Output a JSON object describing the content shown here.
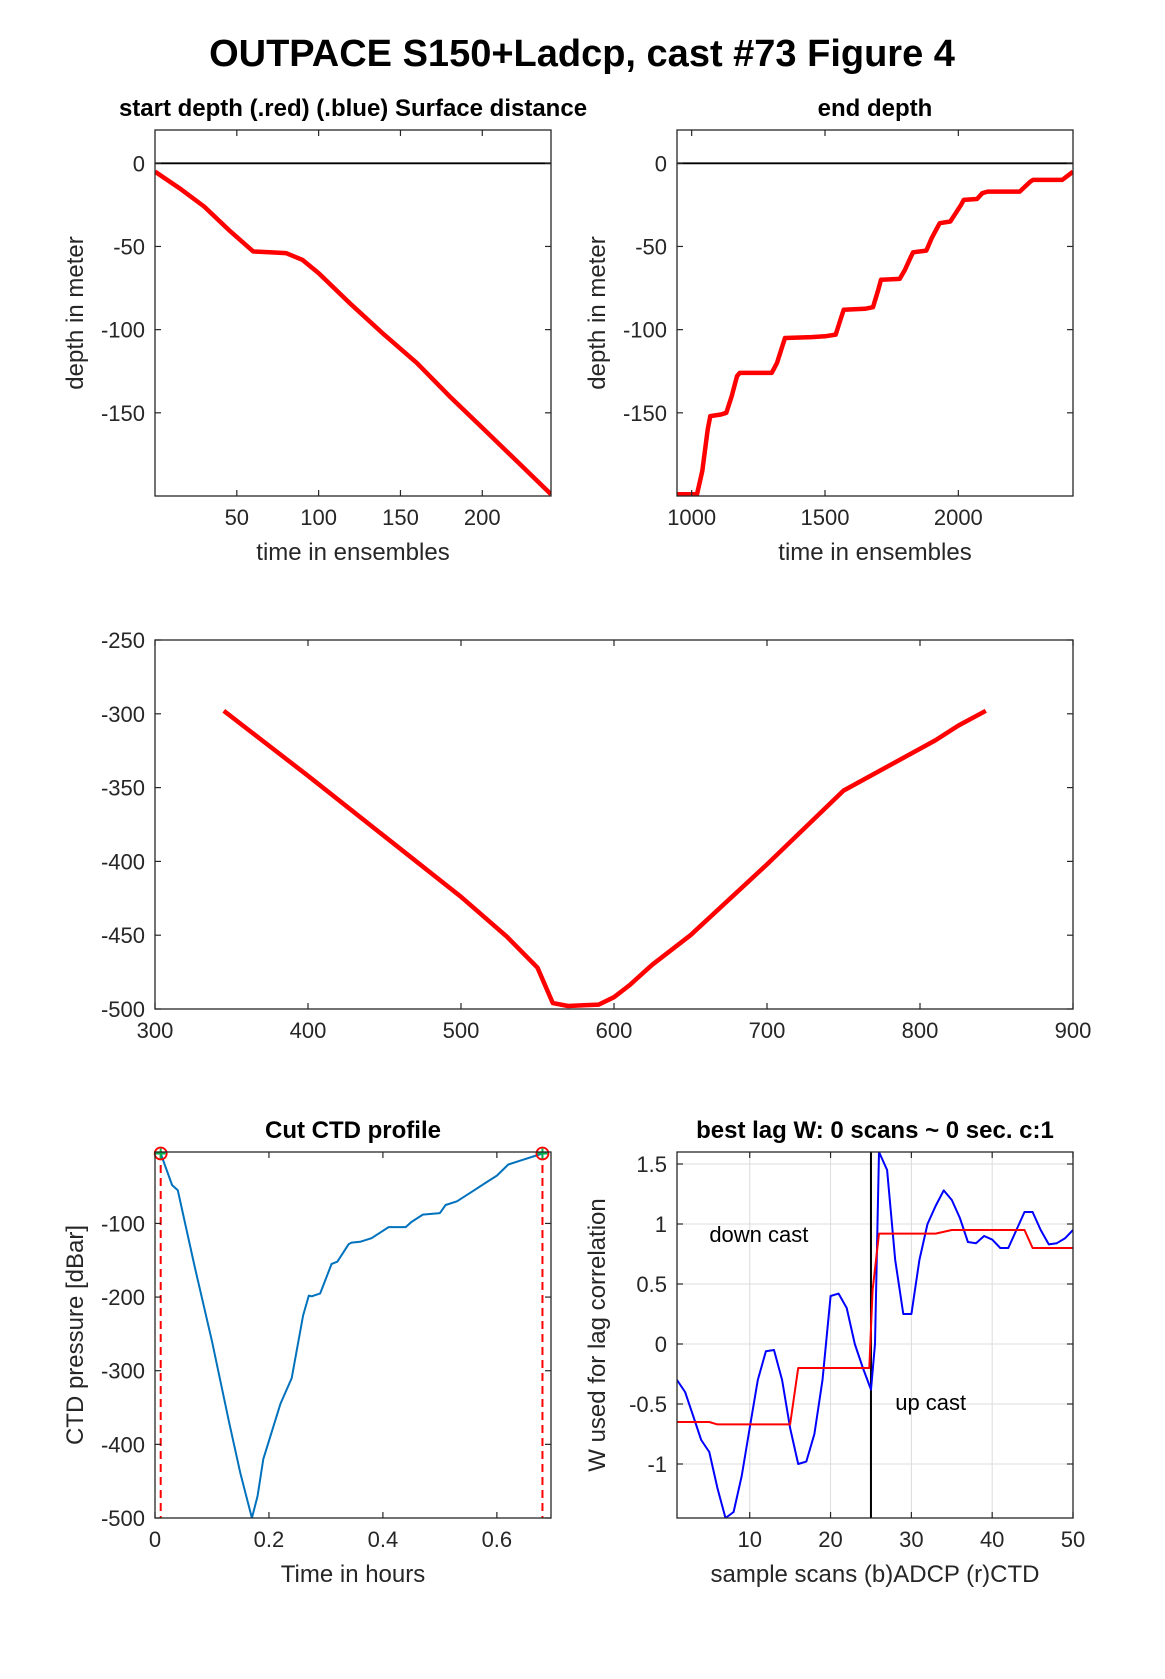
{
  "figure": {
    "title": "OUTPACE S150+Ladcp, cast #73   Figure 4"
  },
  "chart_data": [
    {
      "id": "start",
      "type": "line",
      "title": "start depth (.red) (.blue) Surface distance",
      "xlabel": "time in ensembles",
      "ylabel": "depth in meter",
      "xlim": [
        0,
        242
      ],
      "ylim": [
        -200,
        20
      ],
      "xticks": [
        50,
        100,
        150,
        200
      ],
      "yticks": [
        0,
        -50,
        -100,
        -150
      ],
      "grid": false,
      "series": [
        {
          "color": "#ff0000",
          "x": [
            0,
            15,
            30,
            45,
            60,
            70,
            80,
            90,
            100,
            120,
            140,
            160,
            180,
            200,
            220,
            242
          ],
          "y": [
            -5,
            -15,
            -26,
            -40,
            -53,
            -53.5,
            -54,
            -58,
            -66,
            -85,
            -103,
            -120,
            -140,
            -159,
            -178,
            -199
          ]
        },
        {
          "color": "#000000",
          "x": [
            0,
            242
          ],
          "y": [
            0,
            0
          ]
        }
      ]
    },
    {
      "id": "end",
      "type": "line",
      "title": "end depth",
      "xlabel": "time in ensembles",
      "ylabel": "depth in meter",
      "xlim": [
        945,
        2430
      ],
      "ylim": [
        -200,
        20
      ],
      "xticks": [
        1000,
        1500,
        2000
      ],
      "yticks": [
        0,
        -50,
        -100,
        -150
      ],
      "grid": false,
      "series": [
        {
          "color": "#ff0000",
          "x": [
            945,
            1020,
            1040,
            1060,
            1070,
            1110,
            1130,
            1150,
            1170,
            1180,
            1250,
            1300,
            1320,
            1340,
            1350,
            1450,
            1500,
            1540,
            1560,
            1570,
            1650,
            1680,
            1700,
            1710,
            1780,
            1800,
            1820,
            1830,
            1880,
            1900,
            1920,
            1930,
            1970,
            1990,
            2010,
            2020,
            2070,
            2090,
            2100,
            2110,
            2230,
            2250,
            2270,
            2280,
            2390,
            2430
          ],
          "y": [
            -199,
            -199,
            -185,
            -160,
            -152,
            -151,
            -150,
            -140,
            -128,
            -126,
            -126,
            -126,
            -120,
            -110,
            -105,
            -104.5,
            -104,
            -103,
            -93,
            -88,
            -87.5,
            -86.5,
            -76,
            -70,
            -69.5,
            -64,
            -57,
            -53.5,
            -52.5,
            -45,
            -39,
            -36,
            -35,
            -30,
            -25,
            -22,
            -21.5,
            -18,
            -17.5,
            -17,
            -17,
            -14,
            -11,
            -10,
            -10,
            -5
          ]
        },
        {
          "color": "#000000",
          "x": [
            945,
            2430
          ],
          "y": [
            0,
            0
          ]
        }
      ]
    },
    {
      "id": "middle",
      "type": "line",
      "title": "",
      "xlabel": "",
      "ylabel": "",
      "xlim": [
        300,
        900
      ],
      "ylim": [
        -500,
        -250
      ],
      "xticks": [
        300,
        400,
        500,
        600,
        700,
        800,
        900
      ],
      "yticks": [
        -250,
        -300,
        -350,
        -400,
        -450,
        -500
      ],
      "grid": false,
      "series": [
        {
          "color": "#ff0000",
          "x": [
            345,
            370,
            400,
            450,
            500,
            530,
            550,
            560,
            570,
            580,
            590,
            600,
            610,
            625,
            650,
            700,
            750,
            780,
            810,
            825,
            843
          ],
          "y": [
            -298,
            -318,
            -342,
            -383,
            -424,
            -451,
            -472,
            -496,
            -498,
            -497.5,
            -497,
            -492,
            -484,
            -470,
            -450,
            -402,
            -352,
            -335,
            -318,
            -308,
            -298
          ]
        }
      ]
    },
    {
      "id": "ctd",
      "type": "line",
      "title": "Cut CTD profile",
      "xlabel": "Time in hours",
      "ylabel": "CTD pressure [dBar]",
      "xlim": [
        0,
        0.695
      ],
      "ylim": [
        -500,
        -3
      ],
      "xticks": [
        0,
        0.2,
        0.4,
        0.6
      ],
      "yticks": [
        -100,
        -200,
        -300,
        -400,
        -500
      ],
      "grid": false,
      "series": [
        {
          "color": "#0072bd",
          "x": [
            0.01,
            0.03,
            0.04,
            0.05,
            0.07,
            0.1,
            0.13,
            0.15,
            0.17,
            0.18,
            0.19,
            0.22,
            0.24,
            0.26,
            0.27,
            0.275,
            0.29,
            0.31,
            0.32,
            0.33,
            0.34,
            0.345,
            0.36,
            0.38,
            0.41,
            0.44,
            0.45,
            0.47,
            0.5,
            0.51,
            0.53,
            0.56,
            0.58,
            0.6,
            0.62,
            0.64,
            0.68
          ],
          "y": [
            -5,
            -48,
            -55,
            -90,
            -160,
            -260,
            -370,
            -440,
            -500,
            -470,
            -420,
            -345,
            -310,
            -225,
            -198,
            -199,
            -195,
            -155,
            -152,
            -140,
            -128,
            -126,
            -125,
            -120,
            -105,
            -105,
            -98,
            -88,
            -86,
            -75,
            -70,
            -55,
            -45,
            -35,
            -20,
            -15,
            -5
          ]
        }
      ],
      "markers": [
        {
          "x": 0.01,
          "y": -5,
          "color": "#ff0000"
        },
        {
          "x": 0.68,
          "y": -5,
          "color": "#ff0000"
        }
      ],
      "vlines": [
        {
          "x": 0.01,
          "color": "#ff0000",
          "style": "dashed"
        },
        {
          "x": 0.68,
          "color": "#ff0000",
          "style": "dashed"
        }
      ]
    },
    {
      "id": "lag",
      "type": "line",
      "title": "best lag W: 0 scans ~ 0 sec.  c:1",
      "xlabel": "sample scans (b)ADCP (r)CTD",
      "ylabel": "W used for lag correlation",
      "xlim": [
        1,
        50
      ],
      "ylim": [
        -1.45,
        1.6
      ],
      "xticks": [
        10,
        20,
        30,
        40,
        50
      ],
      "yticks": [
        1.5,
        1,
        0.5,
        0,
        -0.5,
        -1
      ],
      "grid": true,
      "annotations": [
        {
          "text": "down cast",
          "x": 5,
          "y": 0.85
        },
        {
          "text": "up cast",
          "x": 28,
          "y": -0.55
        }
      ],
      "series": [
        {
          "color": "#0000ff",
          "x": [
            1,
            2,
            3,
            4,
            5,
            6,
            7,
            8,
            9,
            10,
            11,
            12,
            13,
            14,
            15,
            16,
            17,
            18,
            19,
            20,
            21,
            22,
            23,
            24,
            25,
            25.5,
            26,
            27,
            28,
            29,
            30,
            31,
            32,
            33,
            34,
            35,
            36,
            37,
            38,
            39,
            40,
            41,
            42,
            43,
            44,
            45,
            46,
            47,
            48,
            49,
            50
          ],
          "y": [
            -0.3,
            -0.4,
            -0.6,
            -0.8,
            -0.9,
            -1.2,
            -1.45,
            -1.4,
            -1.1,
            -0.7,
            -0.3,
            -0.06,
            -0.05,
            -0.3,
            -0.7,
            -1.0,
            -0.98,
            -0.75,
            -0.3,
            0.4,
            0.42,
            0.3,
            0.0,
            -0.2,
            -0.38,
            0.0,
            1.6,
            1.45,
            0.7,
            0.25,
            0.25,
            0.7,
            1.0,
            1.15,
            1.28,
            1.2,
            1.05,
            0.85,
            0.84,
            0.9,
            0.87,
            0.8,
            0.8,
            0.95,
            1.1,
            1.1,
            0.95,
            0.83,
            0.84,
            0.88,
            0.95
          ]
        },
        {
          "color": "#ff0000",
          "x": [
            1,
            5,
            6,
            15,
            16,
            24.8,
            25.2,
            26,
            33,
            35,
            42,
            44,
            45,
            50
          ],
          "y": [
            -0.65,
            -0.65,
            -0.67,
            -0.67,
            -0.2,
            -0.2,
            0.45,
            0.92,
            0.92,
            0.95,
            0.95,
            0.95,
            0.8,
            0.8
          ]
        }
      ],
      "vlines": [
        {
          "x": 25,
          "color": "#000000",
          "style": "solid"
        }
      ]
    }
  ]
}
